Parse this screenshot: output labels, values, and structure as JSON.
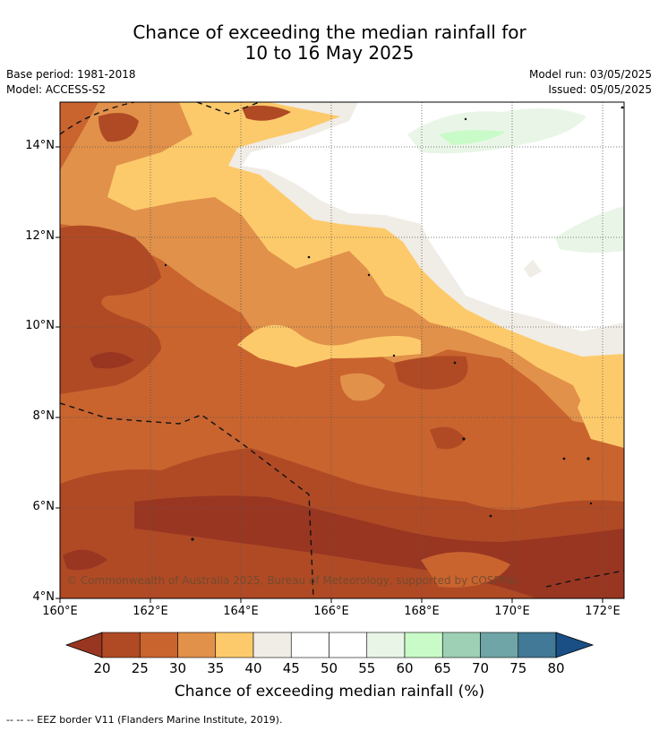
{
  "title_line1": "Chance of exceeding the median rainfall for",
  "title_line2": "10 to 16 May 2025",
  "base_period": "Base period: 1981-2018",
  "model": "Model: ACCESS-S2",
  "model_run": "Model run: 03/05/2025",
  "issued": "Issued: 05/05/2025",
  "copyright": "© Commonwealth of Australia 2025, Bureau of Meteorology, supported by COSPPac",
  "y_ticks": [
    "14°N",
    "12°N",
    "10°N",
    "8°N",
    "6°N",
    "4°N"
  ],
  "x_ticks": [
    "160°E",
    "162°E",
    "164°E",
    "166°E",
    "168°E",
    "170°E",
    "172°E"
  ],
  "colorbar": {
    "title": "Chance of exceeding median rainfall (%)",
    "labels": [
      "20",
      "25",
      "30",
      "35",
      "40",
      "45",
      "50",
      "55",
      "60",
      "65",
      "70",
      "75",
      "80"
    ],
    "colors": [
      "#b04a25",
      "#c9642f",
      "#e1914a",
      "#fdca6b",
      "#f0ece6",
      "#ffffff",
      "#ffffff",
      "#e9f6e7",
      "#c9fbc8",
      "#9dd0b5",
      "#6fa5a6",
      "#417996"
    ],
    "under_color": "#993622",
    "over_color": "#1a4f85"
  },
  "footnote": "--  --  -- EEZ border V11 (Flanders Marine Institute, 2019)."
}
